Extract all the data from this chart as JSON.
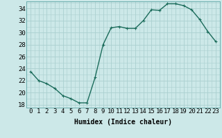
{
  "x": [
    0,
    1,
    2,
    3,
    4,
    5,
    6,
    7,
    8,
    9,
    10,
    11,
    12,
    13,
    14,
    15,
    16,
    17,
    18,
    19,
    20,
    21,
    22,
    23
  ],
  "y": [
    23.5,
    22.0,
    21.5,
    20.7,
    19.5,
    19.0,
    18.3,
    18.3,
    22.5,
    28.0,
    30.8,
    31.0,
    30.7,
    30.7,
    32.0,
    33.8,
    33.7,
    34.8,
    34.8,
    34.5,
    33.8,
    32.2,
    30.2,
    28.5
  ],
  "line_color": "#1a6b5a",
  "marker": "+",
  "marker_size": 3,
  "linewidth": 1.0,
  "bg_color": "#cce8e8",
  "grid_color": "#aad0d0",
  "xlabel": "Humidex (Indice chaleur)",
  "ylabel_ticks": [
    18,
    20,
    22,
    24,
    26,
    28,
    30,
    32,
    34
  ],
  "xlim": [
    -0.5,
    23.5
  ],
  "ylim": [
    17.5,
    35.2
  ],
  "xlabel_fontsize": 7,
  "tick_fontsize": 6.5
}
